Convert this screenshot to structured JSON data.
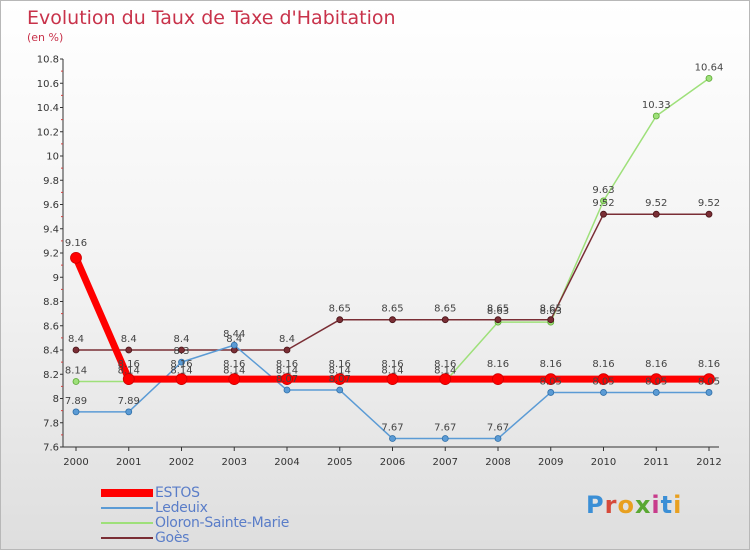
{
  "header": {
    "title": "Evolution du Taux de Taxe d'Habitation",
    "unit": "(en %)"
  },
  "logo": {
    "text": "Proxiti",
    "letters": [
      "P",
      "r",
      "o",
      "x",
      "i",
      "t",
      "i"
    ],
    "colors": [
      "#3b8fd6",
      "#d64a3b",
      "#e8a020",
      "#5aa832",
      "#c83c8c",
      "#3b8fd6",
      "#e8a020"
    ]
  },
  "chart_data": {
    "type": "line",
    "x": [
      "2000",
      "2001",
      "2002",
      "2003",
      "2004",
      "2005",
      "2006",
      "2007",
      "2008",
      "2009",
      "2010",
      "2011",
      "2012"
    ],
    "ylim": [
      7.6,
      10.8
    ],
    "yticks": [
      "7.6",
      "7.8",
      "8",
      "8.2",
      "8.4",
      "8.6",
      "8.8",
      "9",
      "9.2",
      "9.4",
      "9.6",
      "9.8",
      "10",
      "10.2",
      "10.4",
      "10.6",
      "10.8"
    ],
    "grid": false,
    "legend_position": "bottom-left",
    "series": [
      {
        "name": "ESTOS",
        "color": "#ff0000",
        "values": [
          9.16,
          8.16,
          8.16,
          8.16,
          8.16,
          8.16,
          8.16,
          8.16,
          8.16,
          8.16,
          8.16,
          8.16,
          8.16
        ],
        "labels": [
          "9.16",
          "8.16",
          "8.16",
          "8.16",
          "8.16",
          "8.16",
          "8.16",
          "8.16",
          "8.16",
          "8.16",
          "8.16",
          "8.16",
          "8.16"
        ]
      },
      {
        "name": "Ledeuix",
        "color": "#5b9bd5",
        "values": [
          7.89,
          7.89,
          8.3,
          8.44,
          8.07,
          8.07,
          7.67,
          7.67,
          7.67,
          8.05,
          8.05,
          8.05,
          8.05
        ],
        "labels": [
          "7.89",
          "7.89",
          "8.3",
          "8.44",
          "8.07",
          "8.07",
          "7.67",
          "7.67",
          "7.67",
          "8.05",
          "8.05",
          "8.05",
          "8.05"
        ]
      },
      {
        "name": "Oloron-Sainte-Marie",
        "color": "#9ee07a",
        "values": [
          8.14,
          8.14,
          8.14,
          8.14,
          8.14,
          8.14,
          8.14,
          8.14,
          8.63,
          8.63,
          9.63,
          10.33,
          10.64
        ],
        "labels": [
          "8.14",
          "8.14",
          "8.14",
          "8.14",
          "8.14",
          "8.14",
          "8.14",
          "8.14",
          "8.63",
          "8.63",
          "9.63",
          "10.33",
          "10.64"
        ]
      },
      {
        "name": "Goès",
        "color": "#7a2e35",
        "values": [
          8.4,
          8.4,
          8.4,
          8.4,
          8.4,
          8.65,
          8.65,
          8.65,
          8.65,
          8.65,
          9.52,
          9.52,
          9.52
        ],
        "labels": [
          "8.4",
          "8.4",
          "8.4",
          "8.4",
          "8.4",
          "8.65",
          "8.65",
          "8.65",
          "8.65",
          "8.65",
          "9.52",
          "9.52",
          "9.52"
        ]
      }
    ]
  }
}
